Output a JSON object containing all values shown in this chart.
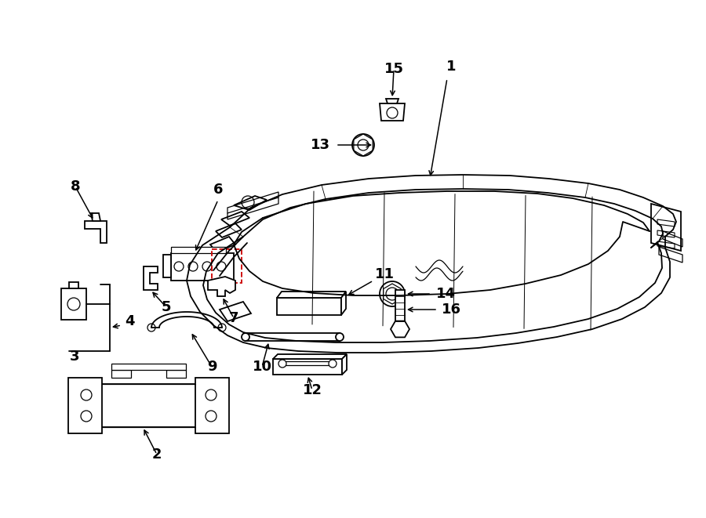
{
  "bg_color": "#ffffff",
  "line_color": "#000000",
  "red_color": "#cc0000",
  "fig_width": 9.0,
  "fig_height": 6.61,
  "dpi": 100,
  "label_fontsize": 13,
  "frame_lw": 1.3,
  "detail_lw": 0.9
}
